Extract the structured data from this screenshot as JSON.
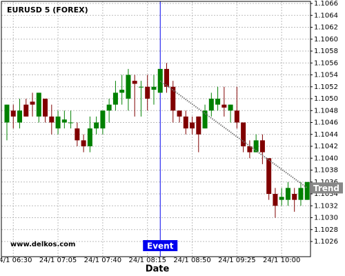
{
  "chart_data": {
    "type": "candlestick",
    "title": "EURUSD 5 (FOREX)",
    "x_label": "Date",
    "watermark": "www.delkos.com",
    "categories": [
      null,
      "24/1 06:30",
      null,
      null,
      null,
      null,
      null,
      null,
      "24/1 07:05",
      null,
      null,
      null,
      null,
      null,
      null,
      "24/1 07:40",
      null,
      null,
      null,
      null,
      null,
      null,
      "24/1 08:15",
      null,
      null,
      null,
      null,
      null,
      null,
      "24/1 08:50",
      null,
      null,
      null,
      null,
      null,
      null,
      "24/1 09:25",
      null,
      null,
      null,
      null,
      null,
      null,
      "24/1 10:00",
      null,
      null,
      null,
      null
    ],
    "open": [
      1.1046,
      1.1048,
      1.1046,
      1.1049,
      1.10495,
      1.1047,
      1.105,
      1.1047,
      1.1045,
      1.1046,
      1.1046,
      1.1045,
      1.1043,
      1.1042,
      1.1045,
      1.1045,
      1.1048,
      1.1049,
      1.1051,
      1.105,
      1.1053,
      1.1052,
      1.1052,
      1.10515,
      1.1051,
      1.1055,
      1.1052,
      1.1048,
      1.1047,
      1.1046,
      1.1047,
      1.1045,
      1.1048,
      1.1049,
      1.1049,
      1.1048,
      1.1048,
      1.1046,
      1.1042,
      1.1041,
      1.1043,
      1.104,
      1.1034,
      1.1033,
      1.1033,
      1.1034,
      1.1033,
      1.1033
    ],
    "high": [
      1.1049,
      1.1049,
      1.105,
      1.105,
      1.1051,
      1.1051,
      1.105,
      1.1049,
      1.1048,
      1.1048,
      1.1048,
      1.1046,
      1.1044,
      1.1047,
      1.1047,
      1.1048,
      1.105,
      1.1053,
      1.1054,
      1.1055,
      1.1054,
      1.1053,
      1.1054,
      1.1054,
      1.1055,
      1.1056,
      1.1053,
      1.1048,
      1.1048,
      1.1047,
      1.1047,
      1.1049,
      1.1051,
      1.1052,
      1.1052,
      1.1049,
      1.1052,
      1.1046,
      1.1043,
      1.1044,
      1.1044,
      1.104,
      1.1035,
      1.1035,
      1.1036,
      1.1035,
      1.1036,
      1.1036
    ],
    "low": [
      1.1043,
      1.1045,
      1.1045,
      1.1047,
      1.1047,
      1.1046,
      1.1046,
      1.1044,
      1.1044,
      1.1045,
      1.1045,
      1.1042,
      1.1041,
      1.1041,
      1.1044,
      1.1044,
      1.1046,
      1.1048,
      1.1049,
      1.1048,
      1.1047,
      1.1047,
      1.1048,
      1.1049,
      1.1051,
      1.1051,
      1.1046,
      1.1046,
      1.1044,
      1.1044,
      1.1041,
      1.1045,
      1.1047,
      1.1048,
      1.1047,
      1.1046,
      1.1045,
      1.1041,
      1.104,
      1.1041,
      1.1039,
      1.1033,
      1.103,
      1.1032,
      1.1032,
      1.1031,
      1.1032,
      1.1033
    ],
    "close": [
      1.1049,
      1.1047,
      1.1048,
      1.1047,
      1.1049,
      1.1051,
      1.1047,
      1.1046,
      1.1047,
      1.10465,
      1.1046,
      1.1043,
      1.1042,
      1.1045,
      1.1046,
      1.1048,
      1.1049,
      1.1051,
      1.10515,
      1.1054,
      1.10525,
      1.1052,
      1.105,
      1.1052,
      1.1055,
      1.1052,
      1.1048,
      1.1047,
      1.1045,
      1.1045,
      1.1044,
      1.1048,
      1.105,
      1.105,
      1.10485,
      1.1049,
      1.1046,
      1.1042,
      1.1041,
      1.1043,
      1.1041,
      1.1034,
      1.1032,
      1.10335,
      1.1035,
      1.1033,
      1.1035,
      1.1036
    ],
    "up_color": "#008000",
    "down_color": "#800000",
    "ylim": [
      1.102345,
      1.106635
    ],
    "yticks": [
      1.1026,
      1.1028,
      {
        "value": 1.103,
        "label": "1.1030"
      },
      1.1032,
      1.1034,
      1.1036,
      1.1038,
      {
        "value": 1.104,
        "label": "1.1040"
      },
      1.1042,
      1.1044,
      1.1046,
      1.1048,
      {
        "value": 1.105,
        "label": "1.1050"
      },
      1.1052,
      1.1054,
      1.1056,
      1.1058,
      {
        "value": 1.106,
        "label": "1.1060"
      },
      1.1062,
      1.1064,
      1.1066
    ],
    "grid": true,
    "event": {
      "label": "Event",
      "x": 24,
      "color": "#0000ee"
    },
    "trend": {
      "label": "Trend",
      "x": [
        24,
        47
      ],
      "values": [
        1.1053,
        1.1035
      ]
    }
  }
}
